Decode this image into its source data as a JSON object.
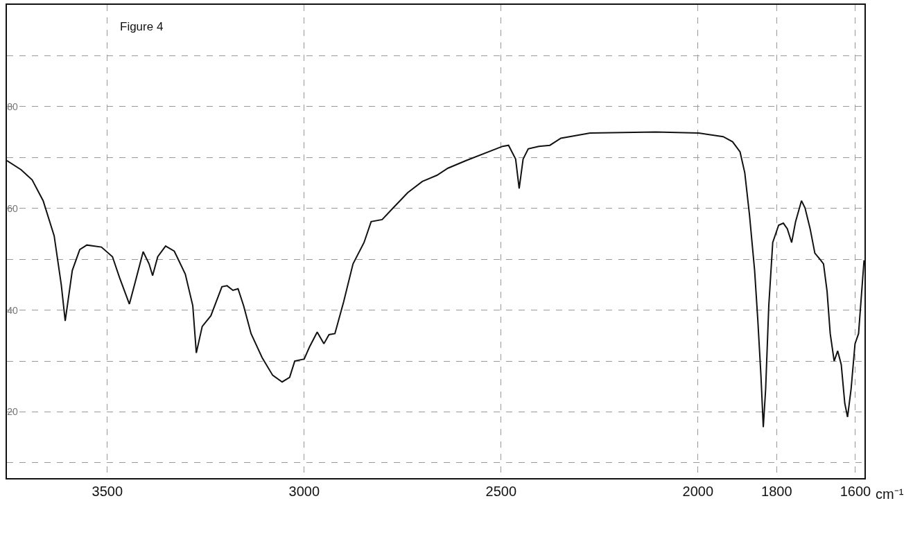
{
  "chart_data": {
    "type": "line",
    "title": "Figure 4",
    "xlabel": "cm⁻¹",
    "x": [
      3755,
      3719,
      3691,
      3663,
      3635,
      3617,
      3607,
      3589,
      3570,
      3552,
      3515,
      3487,
      3469,
      3444,
      3431,
      3409,
      3394,
      3385,
      3372,
      3352,
      3330,
      3302,
      3283,
      3274,
      3259,
      3237,
      3209,
      3196,
      3181,
      3168,
      3154,
      3135,
      3107,
      3080,
      3056,
      3037,
      3024,
      3000,
      2987,
      2967,
      2950,
      2937,
      2922,
      2900,
      2876,
      2848,
      2830,
      2802,
      2774,
      2737,
      2700,
      2663,
      2635,
      2589,
      2496,
      2481,
      2463,
      2454,
      2444,
      2431,
      2404,
      2376,
      2348,
      2274,
      2107,
      1998,
      1936,
      1912,
      1893,
      1881,
      1869,
      1856,
      1848,
      1840,
      1834,
      1828,
      1820,
      1810,
      1795,
      1783,
      1773,
      1762,
      1752,
      1737,
      1728,
      1715,
      1703,
      1688,
      1681,
      1672,
      1664,
      1654,
      1645,
      1636,
      1627,
      1620,
      1611,
      1601,
      1592,
      1584,
      1578
    ],
    "series": [
      {
        "color": "#111111",
        "values": [
          69.4,
          67.6,
          65.6,
          61.5,
          54.6,
          45.0,
          37.9,
          47.8,
          51.9,
          52.8,
          52.4,
          50.5,
          46.4,
          41.2,
          45.0,
          51.5,
          49.1,
          46.8,
          50.5,
          52.6,
          51.6,
          47.1,
          40.9,
          31.6,
          36.8,
          38.9,
          44.6,
          44.8,
          43.9,
          44.2,
          40.9,
          35.4,
          30.7,
          27.2,
          25.9,
          26.8,
          30.0,
          30.4,
          32.7,
          35.7,
          33.4,
          35.2,
          35.4,
          41.6,
          49.1,
          53.3,
          57.4,
          57.8,
          60.1,
          63.1,
          65.3,
          66.5,
          67.9,
          69.4,
          72.2,
          72.4,
          69.7,
          63.9,
          69.7,
          71.7,
          72.2,
          72.4,
          73.8,
          74.8,
          75.0,
          74.8,
          74.1,
          73.1,
          71.1,
          67.0,
          58.7,
          47.8,
          38.2,
          27.2,
          17.0,
          24.5,
          40.9,
          53.3,
          56.7,
          57.1,
          56.0,
          53.3,
          57.4,
          61.5,
          60.1,
          56.0,
          51.2,
          49.8,
          49.1,
          43.7,
          35.4,
          30.0,
          32.0,
          29.3,
          21.7,
          19.0,
          24.5,
          33.4,
          35.4,
          43.7,
          49.8
        ]
      }
    ],
    "xlim": [
      3755,
      1577
    ],
    "xticks": [
      3500,
      3000,
      2500,
      2000,
      1800,
      1600
    ],
    "ylim": [
      7,
      100
    ],
    "yticks": [
      {
        "value": 10,
        "label": null
      },
      20,
      {
        "value": 30,
        "label": null
      },
      40,
      {
        "value": 50,
        "label": null
      },
      60,
      {
        "value": 70,
        "label": null
      },
      80,
      {
        "value": 90,
        "label": null
      }
    ],
    "grid": true,
    "line_style": "solid"
  }
}
